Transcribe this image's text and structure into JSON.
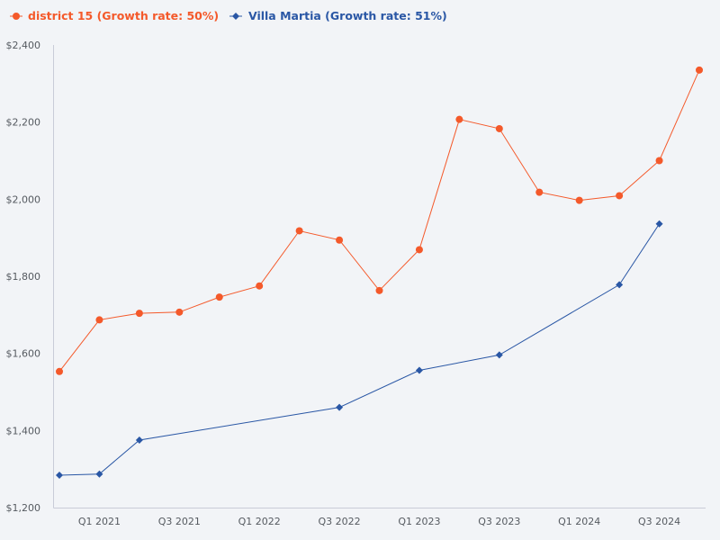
{
  "chart_data": {
    "type": "line",
    "title": "",
    "xlabel": "",
    "ylabel": "",
    "ylim": [
      1200,
      2400
    ],
    "y_ticks": [
      "$1,200",
      "$1,400",
      "$1,600",
      "$1,800",
      "$2,000",
      "$2,200",
      "$2,400"
    ],
    "y_tick_values": [
      1200,
      1400,
      1600,
      1800,
      2000,
      2200,
      2400
    ],
    "x_tick_labels": [
      "Q1 2021",
      "Q3 2021",
      "Q1 2022",
      "Q3 2022",
      "Q1 2023",
      "Q3 2023",
      "Q1 2024",
      "Q3 2024"
    ],
    "x_tick_index": [
      1,
      3,
      5,
      7,
      9,
      11,
      13,
      15
    ],
    "x_count": 17,
    "grid": false,
    "legend_position": "top-left",
    "series": [
      {
        "name": "district 15 (Growth rate: 50%)",
        "color": "#f4592a",
        "marker": "circle",
        "points": [
          [
            0,
            1553
          ],
          [
            1,
            1687
          ],
          [
            2,
            1704
          ],
          [
            3,
            1707
          ],
          [
            4,
            1746
          ],
          [
            5,
            1775
          ],
          [
            6,
            1918
          ],
          [
            7,
            1894
          ],
          [
            8,
            1763
          ],
          [
            9,
            1869
          ],
          [
            10,
            2207
          ],
          [
            11,
            2183
          ],
          [
            12,
            2018
          ],
          [
            13,
            1997
          ],
          [
            14,
            2009
          ],
          [
            15,
            2100
          ],
          [
            16,
            2335
          ]
        ]
      },
      {
        "name": "Villa Martia (Growth rate: 51%)",
        "color": "#2a57a5",
        "marker": "diamond",
        "points": [
          [
            0,
            1284
          ],
          [
            1,
            1287
          ],
          [
            2,
            1375
          ],
          [
            7,
            1460
          ],
          [
            9,
            1556
          ],
          [
            11,
            1596
          ],
          [
            14,
            1778
          ],
          [
            15,
            1936
          ]
        ]
      }
    ]
  }
}
